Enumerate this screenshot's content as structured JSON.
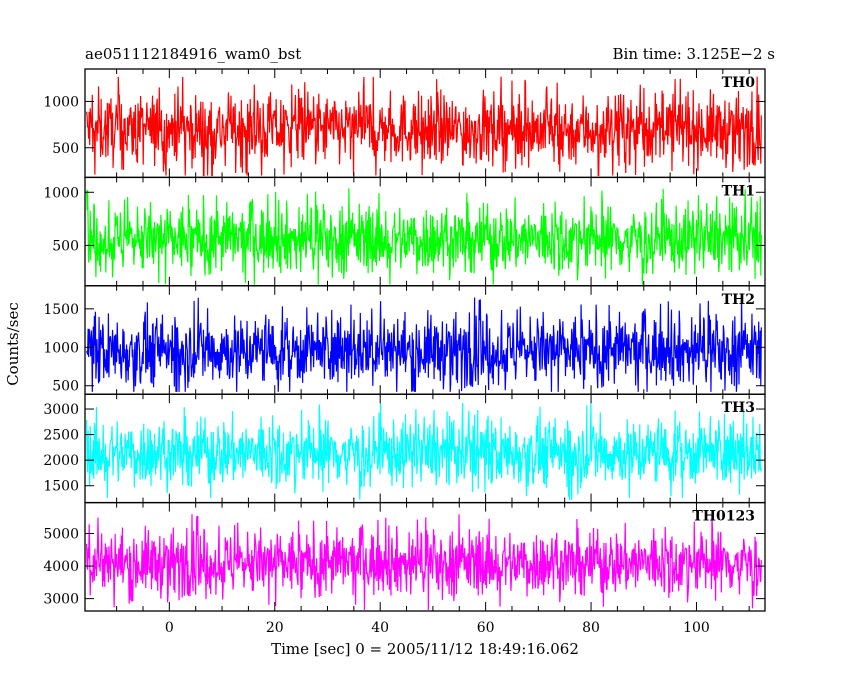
{
  "header": {
    "left_title": "ae051112184916_wam0_bst",
    "right_title": "Bin time: 3.125E−2 s"
  },
  "chart_data": {
    "type": "line",
    "title": "ae051112184916_wam0_bst",
    "subtitle": "Bin time: 3.125E−2 s",
    "xlabel": "Time [sec] 0 = 2005/11/12 18:49:16.062",
    "ylabel": "Counts/sec",
    "xlim": [
      -16,
      113
    ],
    "x_ticks": [
      0,
      20,
      40,
      60,
      80,
      100
    ],
    "x_tick_labels": [
      "0",
      "20",
      "40",
      "60",
      "80",
      "100"
    ],
    "x_data_range": [
      -15.7,
      112.3
    ],
    "bin_time_s": 0.03125,
    "grid": false,
    "panels": [
      {
        "label": "TH0",
        "color": "#ff0000",
        "ylim": [
          180,
          1350
        ],
        "y_ticks": [
          500,
          1000
        ],
        "y_tick_labels": [
          "500",
          "1000"
        ],
        "mean": 700,
        "spread": 190,
        "max": 1320,
        "min": 200
      },
      {
        "label": "TH1",
        "color": "#00ff00",
        "ylim": [
          120,
          1140
        ],
        "y_ticks": [
          500,
          1000
        ],
        "y_tick_labels": [
          "500",
          "1000"
        ],
        "mean": 560,
        "spread": 160,
        "max": 1130,
        "min": 130
      },
      {
        "label": "TH2",
        "color": "#0000ff",
        "ylim": [
          390,
          1800
        ],
        "y_ticks": [
          500,
          1000,
          1500
        ],
        "y_tick_labels": [
          "500",
          "1000",
          "1500"
        ],
        "mean": 960,
        "spread": 230,
        "max": 1780,
        "min": 420
      },
      {
        "label": "TH3",
        "color": "#00ffff",
        "ylim": [
          1170,
          3290
        ],
        "y_ticks": [
          1500,
          2000,
          2500,
          3000
        ],
        "y_tick_labels": [
          "1500",
          "2000",
          "2500",
          "3000"
        ],
        "mean": 2150,
        "spread": 330,
        "max": 3260,
        "min": 1220
      },
      {
        "label": "TH0123",
        "color": "#ff00ff",
        "ylim": [
          2620,
          5950
        ],
        "y_ticks": [
          3000,
          4000,
          5000
        ],
        "y_tick_labels": [
          "3000",
          "4000",
          "5000"
        ],
        "mean": 4100,
        "spread": 500,
        "max": 5900,
        "min": 2650
      }
    ]
  }
}
